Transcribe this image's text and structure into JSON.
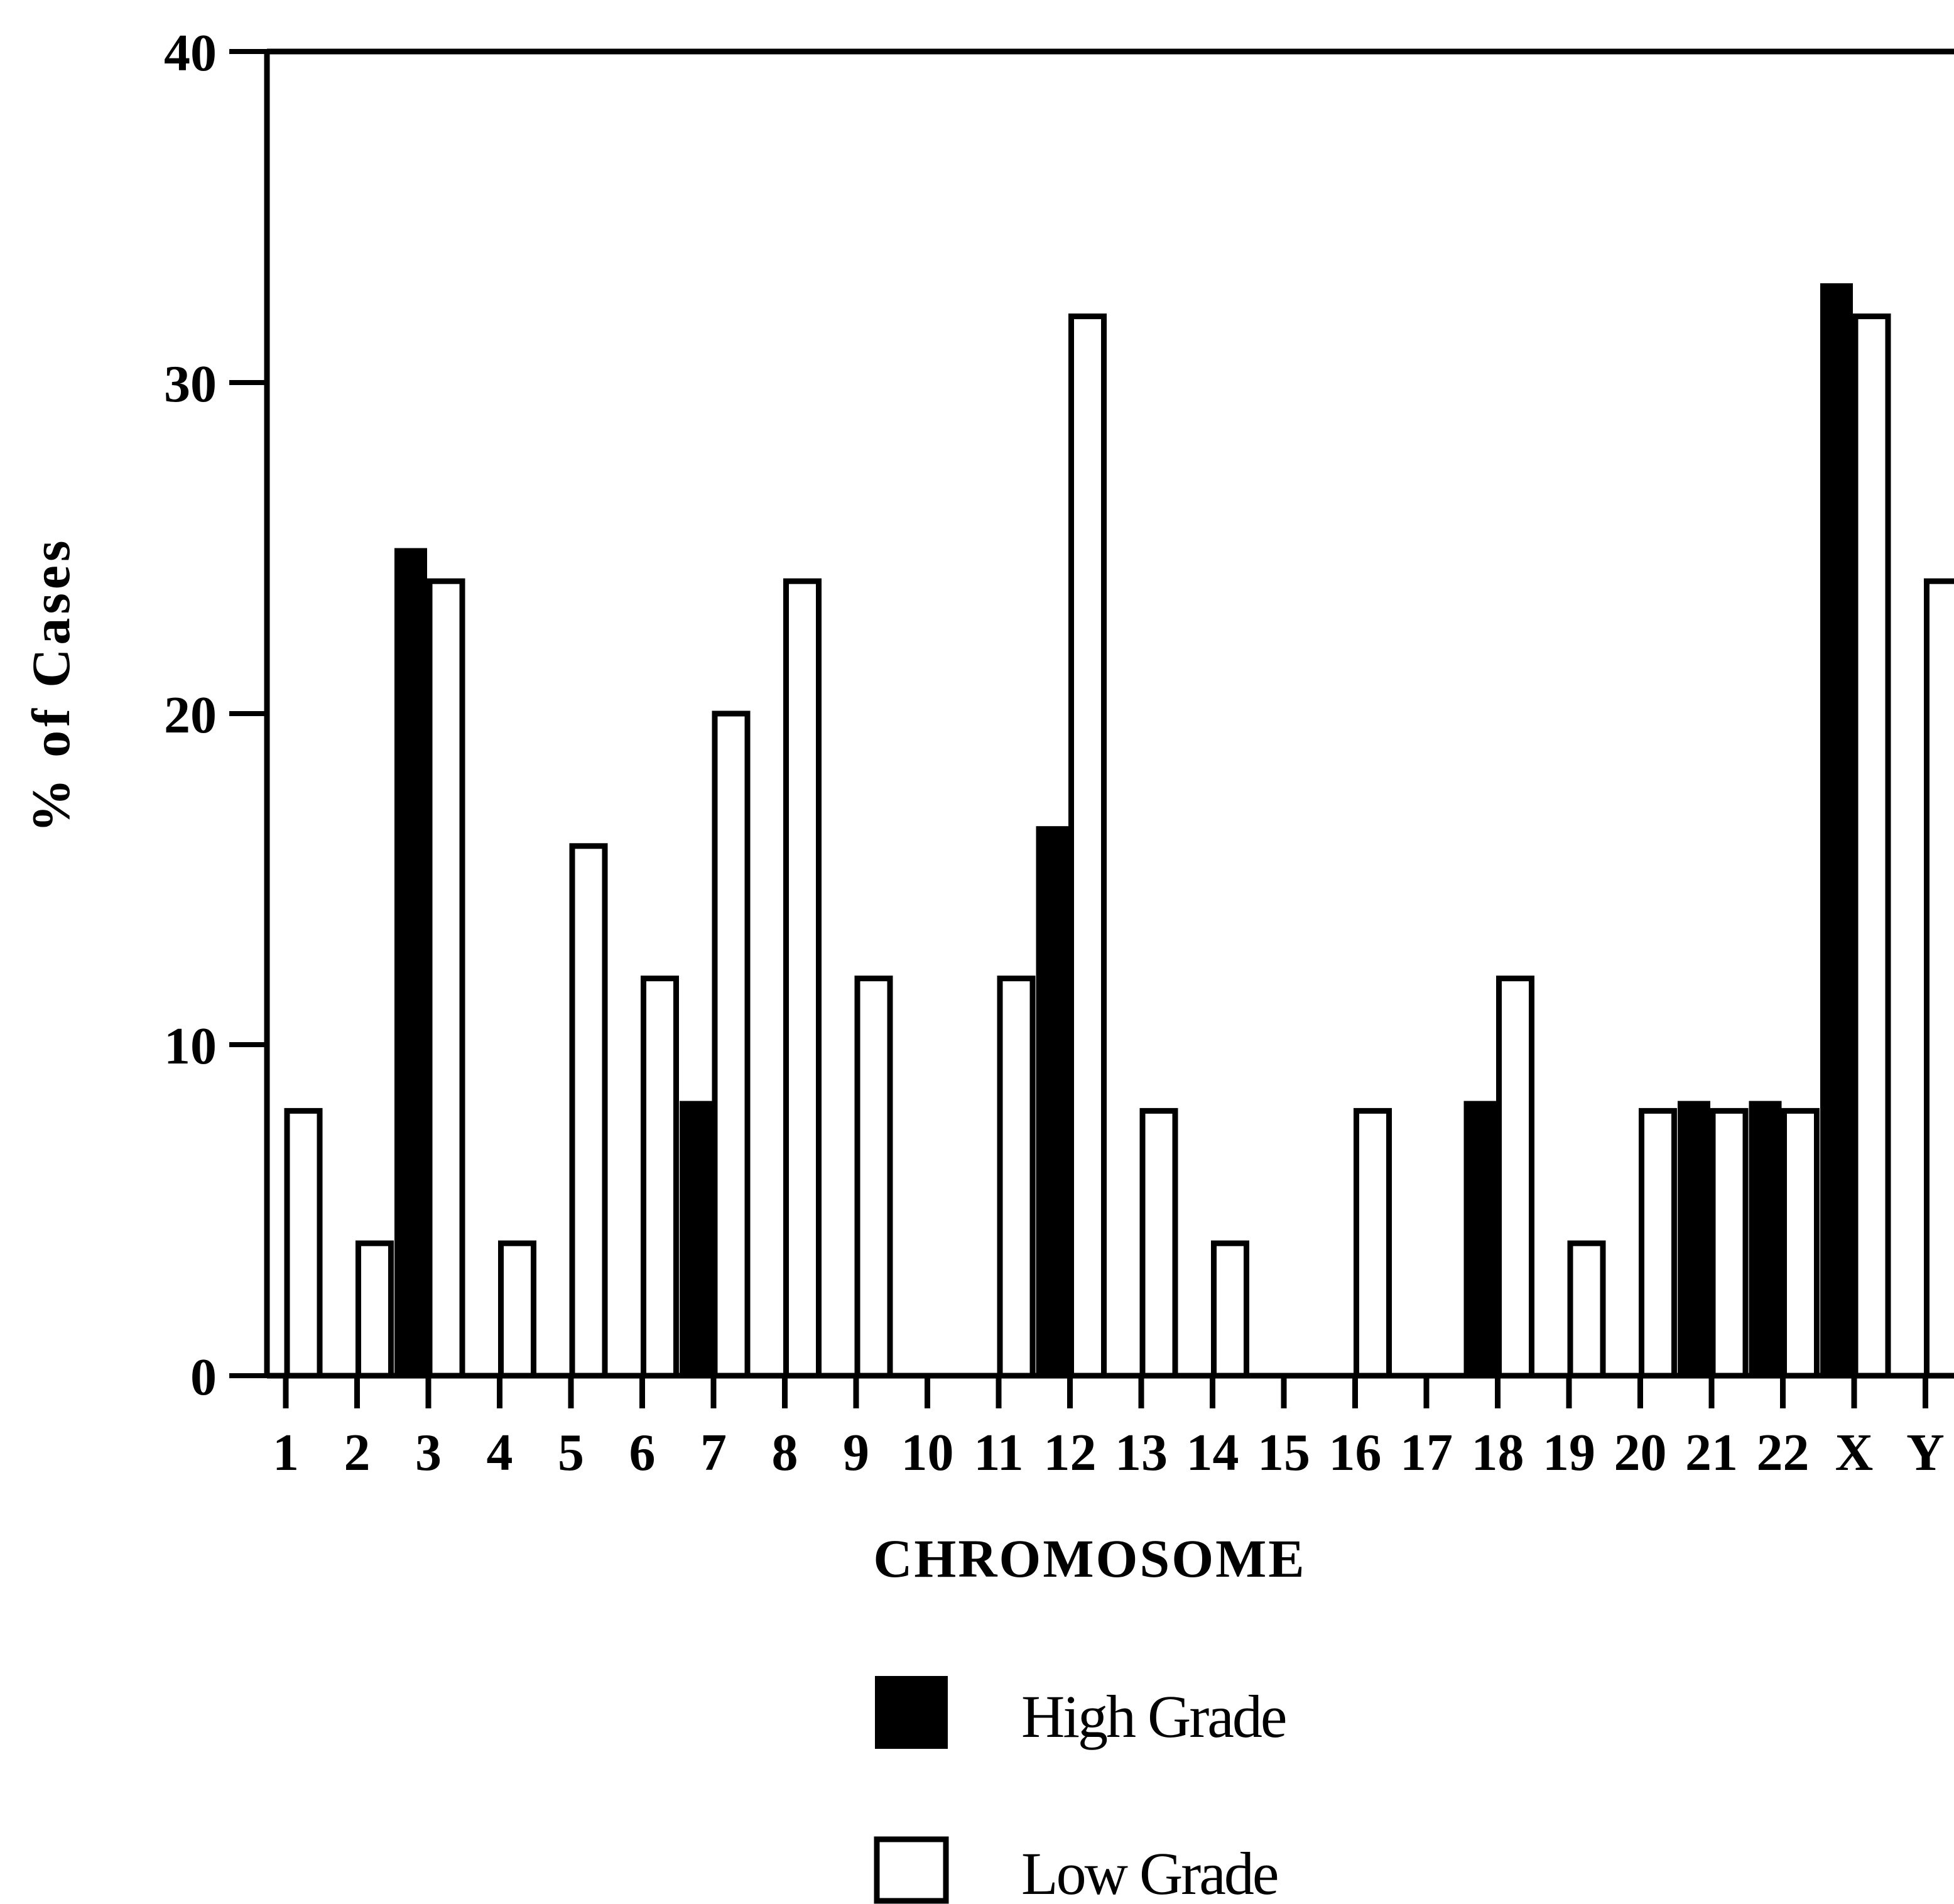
{
  "chart_data": {
    "type": "bar",
    "xlabel": "CHROMOSOME",
    "ylabel": "% of Cases",
    "ylim": [
      0,
      40
    ],
    "yticks": [
      0,
      10,
      20,
      30,
      40
    ],
    "grid": false,
    "legend_position": "bottom",
    "categories": [
      "1",
      "2",
      "3",
      "4",
      "5",
      "6",
      "7",
      "8",
      "9",
      "10",
      "11",
      "12",
      "13",
      "14",
      "15",
      "16",
      "17",
      "18",
      "19",
      "20",
      "21",
      "22",
      "X",
      "Y"
    ],
    "series": [
      {
        "name": "High Grade",
        "color": "#000000",
        "fill": "solid",
        "values": [
          0,
          0,
          25,
          0,
          0,
          0,
          8.3,
          0,
          0,
          0,
          0,
          16.6,
          0,
          0,
          0,
          0,
          0,
          8.3,
          0,
          0,
          8.3,
          8.3,
          33,
          0
        ]
      },
      {
        "name": "Low Grade",
        "color": "#000000",
        "fill": "open",
        "values": [
          8,
          4,
          24,
          4,
          16,
          12,
          20,
          24,
          12,
          0,
          12,
          32,
          8,
          4,
          0,
          8,
          0,
          12,
          4,
          8,
          8,
          8,
          32,
          24
        ]
      }
    ]
  }
}
